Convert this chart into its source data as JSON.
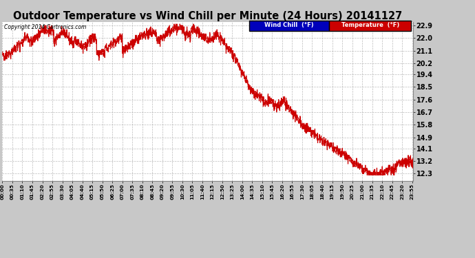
{
  "title": "Outdoor Temperature vs Wind Chill per Minute (24 Hours) 20141127",
  "copyright": "Copyright 2014 Cartronics.com",
  "y_ticks": [
    12.3,
    13.2,
    14.1,
    14.9,
    15.8,
    16.7,
    17.6,
    18.5,
    19.4,
    20.2,
    21.1,
    22.0,
    22.9
  ],
  "ylim_min": 11.8,
  "ylim_max": 23.15,
  "bg_color": "#c8c8c8",
  "plot_bg_color": "#ffffff",
  "grid_color": "#aaaaaa",
  "line_color": "#cc0000",
  "title_fontsize": 10.5,
  "legend_wind_chill_bg": "#0000bb",
  "legend_temp_bg": "#cc0000",
  "legend_text_color": "#ffffff"
}
